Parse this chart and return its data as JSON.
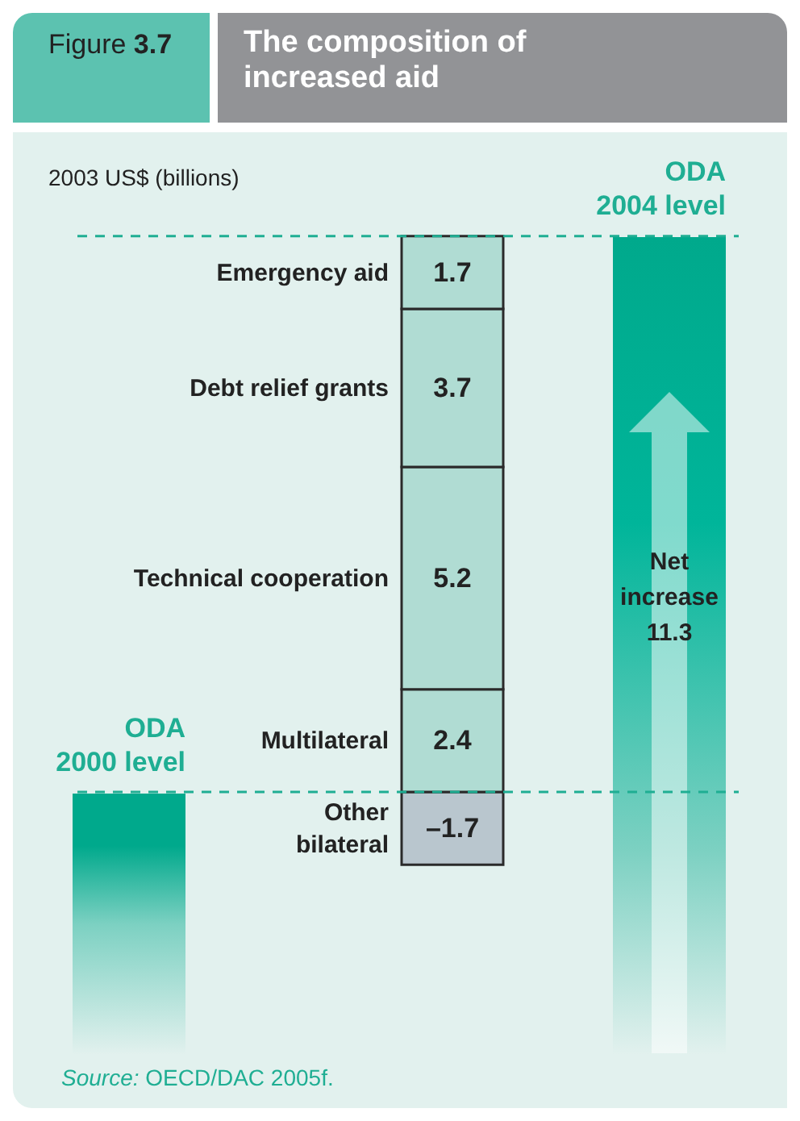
{
  "chart_data": {
    "type": "bar",
    "stacked": true,
    "title": "The composition of increased aid",
    "subtitle": "Figure 3.7",
    "categories": [
      null
    ],
    "series": [
      {
        "name": "Other bilateral",
        "color": "#b9c6ce",
        "values": [
          -1.7
        ],
        "value_labels": [
          "–1.7"
        ]
      },
      {
        "name": "Multilateral",
        "color": "#b0dcd3",
        "values": [
          2.4
        ]
      },
      {
        "name": "Technical cooperation",
        "color": "#b0dcd3",
        "values": [
          5.2
        ]
      },
      {
        "name": "Debt relief grants",
        "color": "#b0dcd3",
        "values": [
          3.7
        ]
      },
      {
        "name": "Emergency aid",
        "color": "#b0dcd3",
        "values": [
          1.7
        ]
      }
    ],
    "ref_lines": [
      {
        "axis": "y",
        "value": 0,
        "label": "ODA 2000 level",
        "color": "#1fae93",
        "line_style": "dashed"
      },
      {
        "axis": "y",
        "value": 13,
        "label": "ODA 2004 level",
        "color": "#1fae93",
        "line_style": "dashed"
      }
    ],
    "annotations": [
      "2003 US$ (billions)",
      "Net increase 11.3",
      "Source: OECD/DAC 2005f."
    ],
    "data_labels": true
  }
}
